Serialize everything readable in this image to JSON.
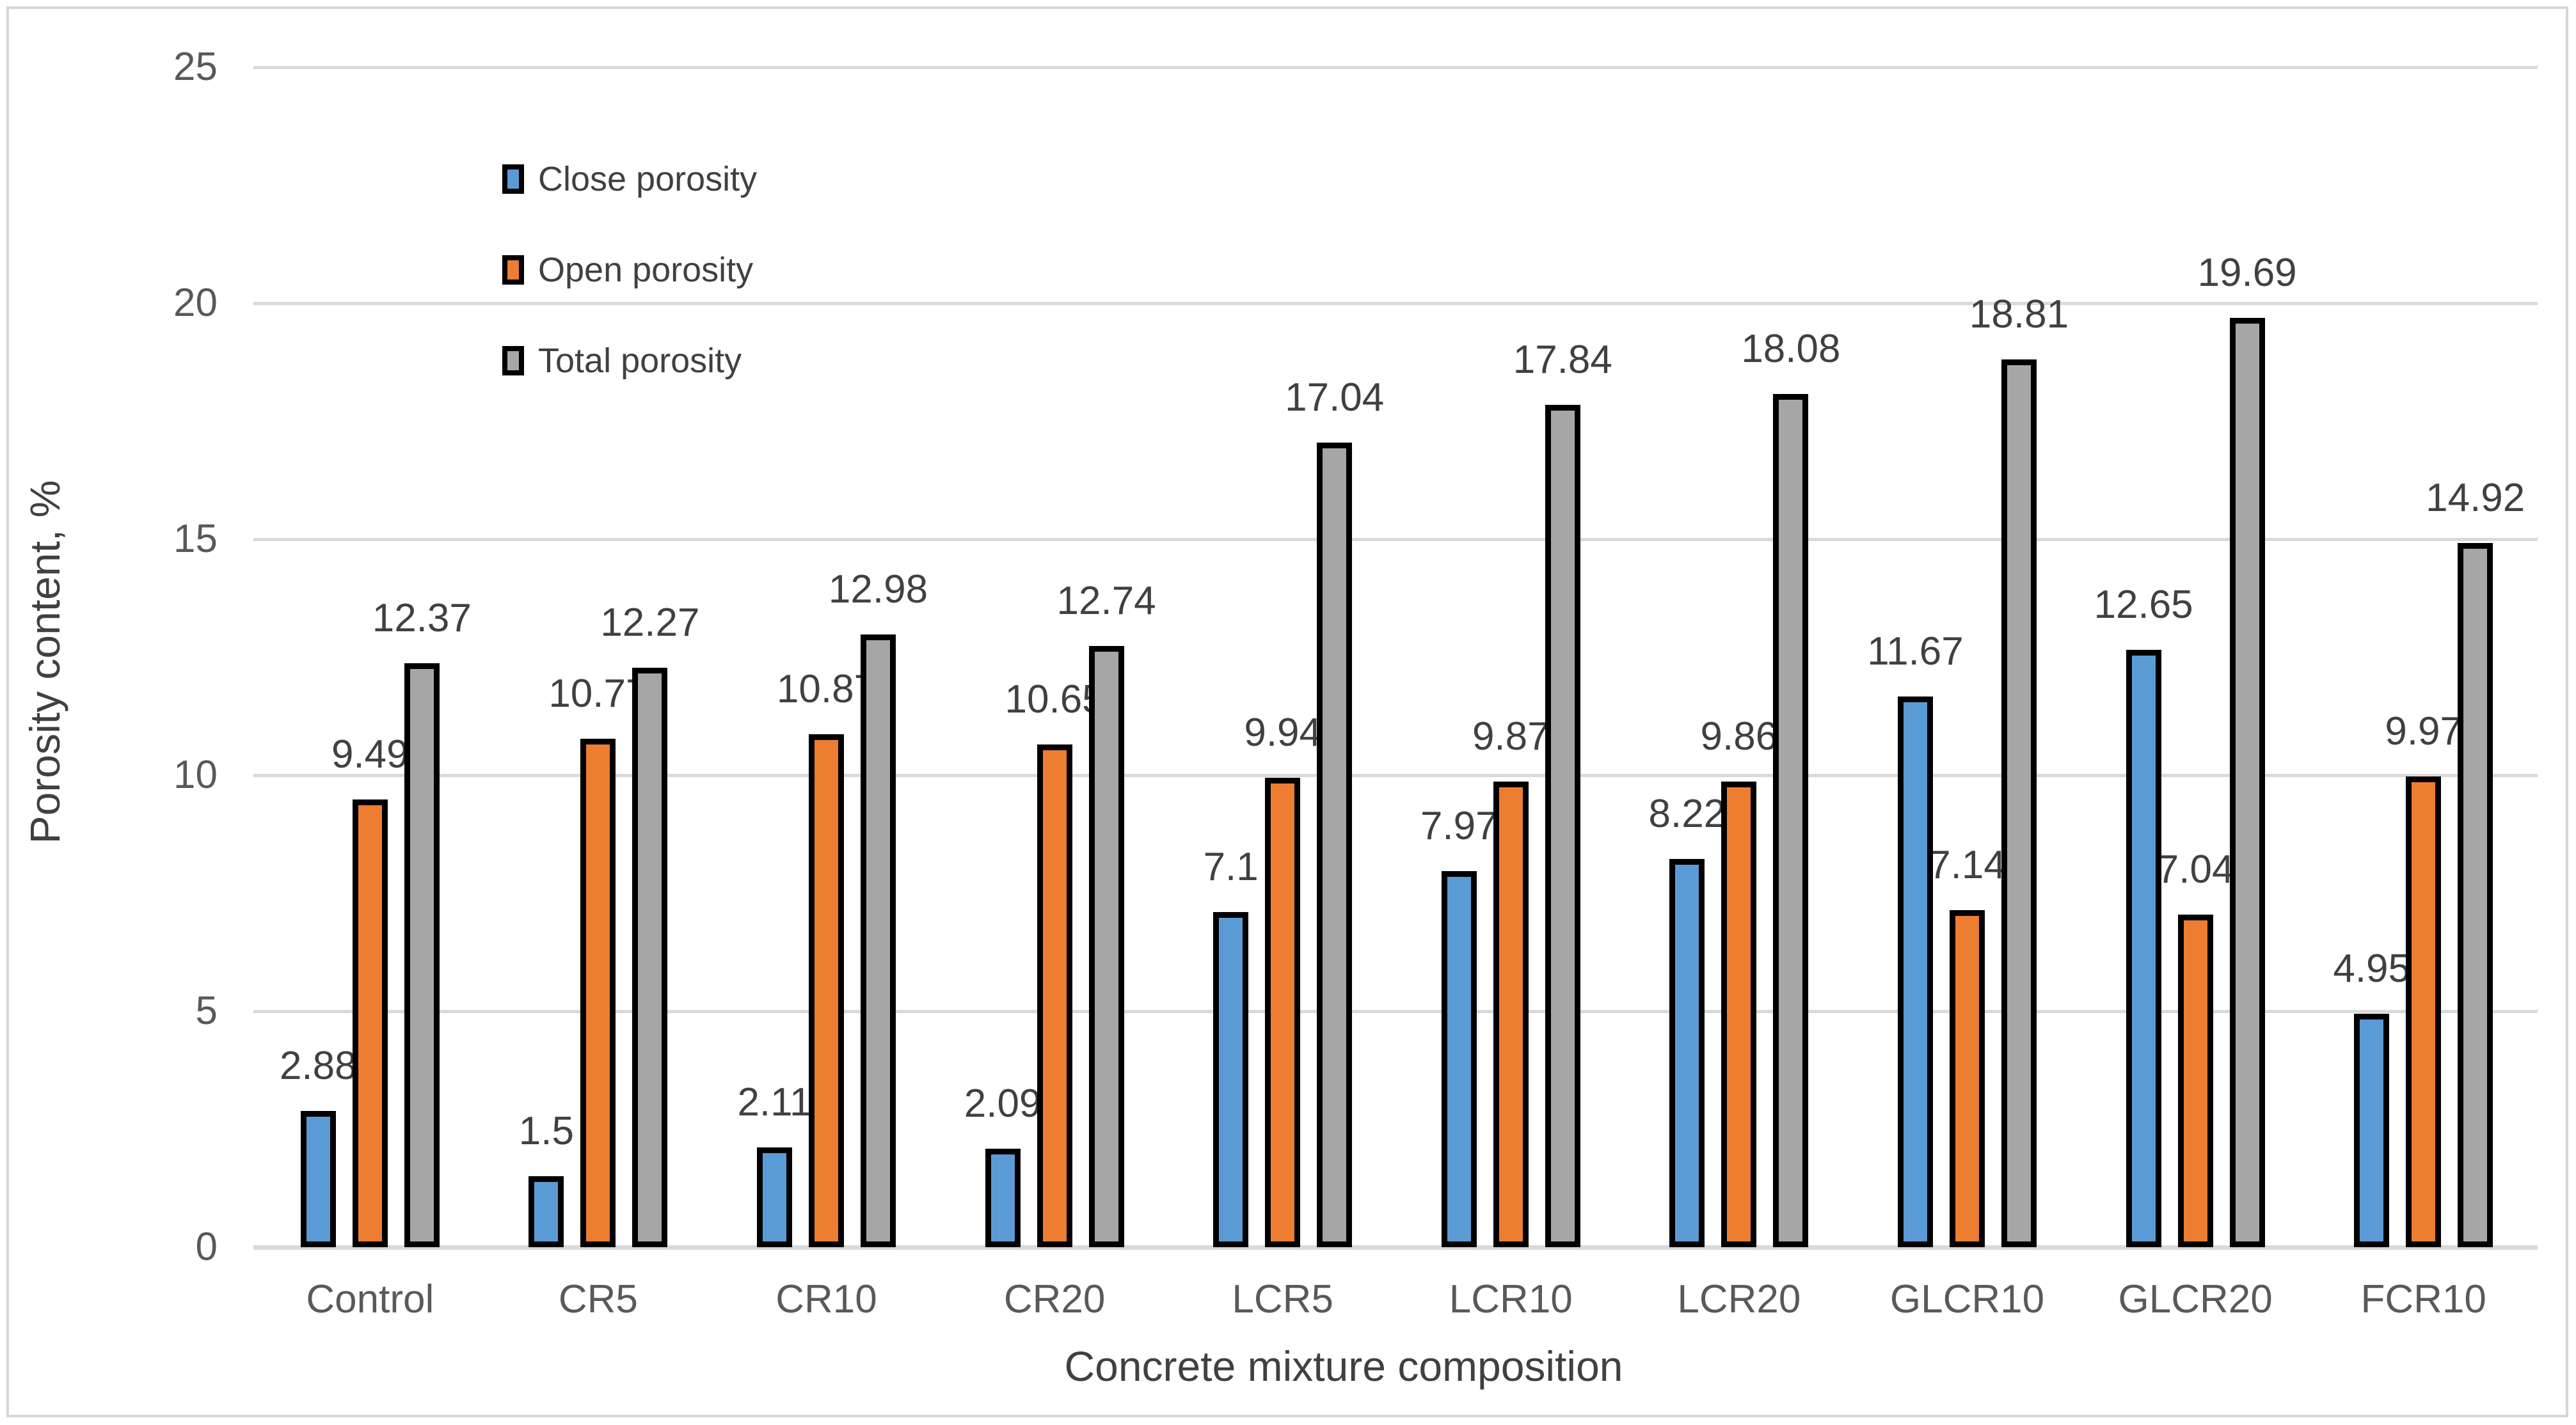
{
  "chart_data": {
    "type": "bar",
    "title": "",
    "categories": [
      "Control",
      "CR5",
      "CR10",
      "CR20",
      "LCR5",
      "LCR10",
      "LCR20",
      "GLCR10",
      "GLCR20",
      "FCR10"
    ],
    "series": [
      {
        "name": "Close porosity",
        "color": "#5B9BD5",
        "values": [
          2.88,
          1.5,
          2.11,
          2.09,
          7.1,
          7.97,
          8.22,
          11.67,
          12.65,
          4.95
        ]
      },
      {
        "name": "Open porosity",
        "color": "#ED7D31",
        "values": [
          9.49,
          10.77,
          10.87,
          10.65,
          9.94,
          9.87,
          9.86,
          7.14,
          7.04,
          9.97
        ]
      },
      {
        "name": "Total porosity",
        "color": "#A6A6A6",
        "values": [
          12.37,
          12.27,
          12.98,
          12.74,
          17.04,
          17.84,
          18.08,
          18.81,
          19.69,
          14.92
        ]
      }
    ],
    "xlabel": "Concrete mixture composition",
    "ylabel": "Porosity content, %",
    "ylim": [
      0,
      25
    ],
    "yticks": [
      0,
      5,
      10,
      15,
      20,
      25
    ],
    "grid": true,
    "legend_position": "inside-upper-left",
    "data_labels": "outside-end, drawn behind bars",
    "colors": {
      "bar_outline": "#000000",
      "gridline": "#D9D9D9",
      "tick_text": "#595959",
      "label_text": "#404040",
      "background": "#FFFFFF"
    }
  }
}
